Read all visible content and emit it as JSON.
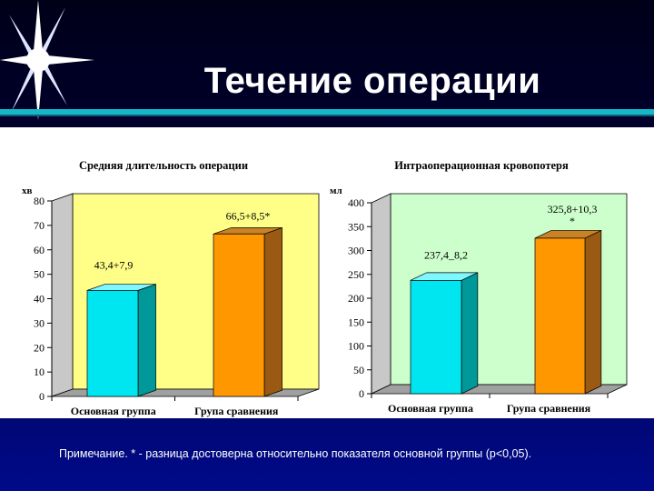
{
  "slide": {
    "title": "Течение операции",
    "footnote": "Примечание. * - разница достоверна относительно показателя основной группы (р<0,05).",
    "colors": {
      "background": "#00003a",
      "title_rule": "#16b8c8",
      "bar_primary": "#00e6f0",
      "bar_primary_dark": "#009898",
      "bar_compare": "#ff9800",
      "bar_compare_dark": "#9a5a14"
    }
  },
  "chart_data": [
    {
      "type": "bar",
      "title": "Средняя длительность операции",
      "ylabel": "хв",
      "ylim": [
        0,
        80
      ],
      "yticks": [
        "0",
        "10",
        "20",
        "30",
        "40",
        "50",
        "60",
        "70",
        "80"
      ],
      "categories": [
        "Основная группа",
        "Група сравнения"
      ],
      "values": [
        43.4,
        66.5
      ],
      "data_labels": [
        "43,4+7,9",
        "66,5+8,5*"
      ],
      "wall_color": "#ffff88",
      "grid": false
    },
    {
      "type": "bar",
      "title": "Интраоперационная кровопотеря",
      "ylabel": "мл",
      "ylim": [
        0,
        400
      ],
      "yticks": [
        "0",
        "50",
        "100",
        "150",
        "200",
        "250",
        "300",
        "350",
        "400"
      ],
      "categories": [
        "Основная группа",
        "Група сравнения"
      ],
      "values": [
        237.4,
        325.8
      ],
      "data_labels": [
        "237,4_8,2",
        "325,8+10,3\n*"
      ],
      "wall_color": "#ccffcc",
      "grid": false
    }
  ]
}
